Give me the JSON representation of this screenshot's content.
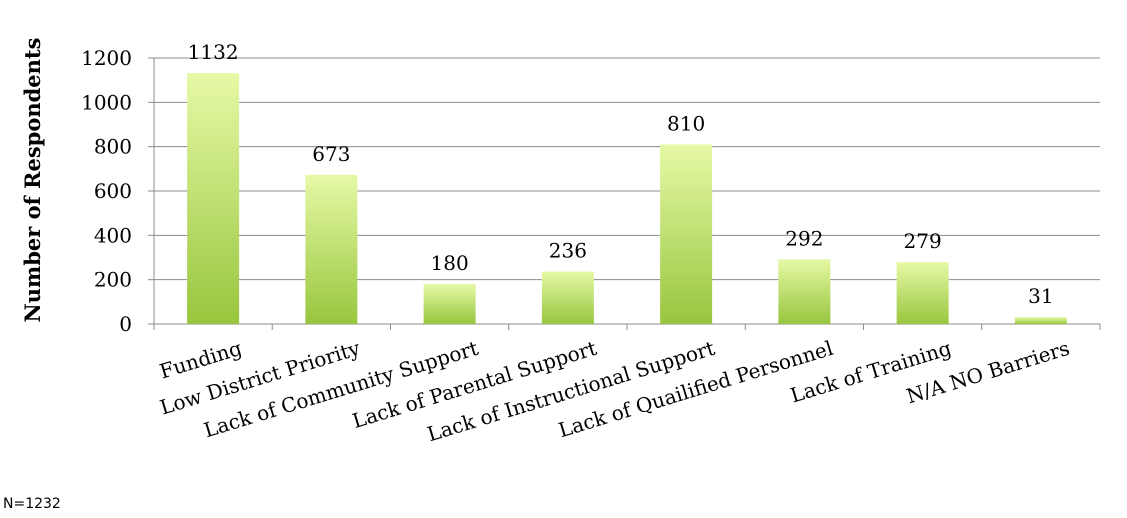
{
  "chart_data": {
    "type": "bar",
    "ylabel": "Number  of Respondents",
    "xlabel": "",
    "ylim": [
      0,
      1200
    ],
    "yticks": [
      0,
      200,
      400,
      600,
      800,
      1000,
      1200
    ],
    "grid": true,
    "categories": [
      "Funding",
      "Low District Priority",
      "Lack of Community Support",
      "Lack of Parental Support",
      "Lack of Instructional Support",
      "Lack of Quailified Personnel",
      "Lack of Training",
      "N/A NO Barriers"
    ],
    "values": [
      1132,
      673,
      180,
      236,
      810,
      292,
      279,
      31
    ],
    "bar_color_top": "#e6f9a6",
    "bar_color_bottom": "#98c63e"
  },
  "note": "N=1232"
}
